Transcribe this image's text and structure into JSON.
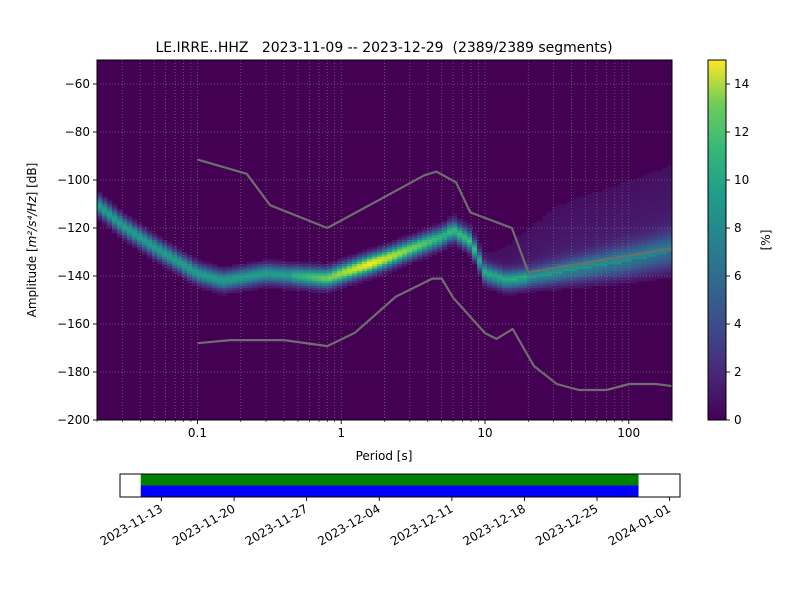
{
  "chart_data": [
    {
      "type": "heatmap",
      "subtype": "probabilistic power spectral density",
      "title": "LE.IRRE..HHZ   2023-11-09 -- 2023-12-29  (2389/2389 segments)",
      "xlabel": "Period [s]",
      "ylabel_prefix": "Amplitude [",
      "ylabel_math": "m²/s⁴/Hz",
      "ylabel_suffix": "] [dB]",
      "x_scale": "log",
      "xlim": [
        0.02,
        200
      ],
      "ylim": [
        -200,
        -50
      ],
      "xticks": [
        {
          "value": 0.1,
          "label": "0.1"
        },
        {
          "value": 1,
          "label": "1"
        },
        {
          "value": 10,
          "label": "10"
        },
        {
          "value": 100,
          "label": "100"
        }
      ],
      "yticks": [
        -60,
        -80,
        -100,
        -120,
        -140,
        -160,
        -180,
        -200
      ],
      "grid": true,
      "colormap": "viridis",
      "colorbar": {
        "label": "[%]",
        "range": [
          0,
          15
        ],
        "ticks": [
          0,
          2,
          4,
          6,
          8,
          10,
          12,
          14
        ]
      },
      "density_mode_curve": {
        "period": [
          0.02,
          0.03,
          0.05,
          0.1,
          0.15,
          0.3,
          0.5,
          0.8,
          1.0,
          2.0,
          4.0,
          5.0,
          6.0,
          8.0,
          10.0,
          14.0,
          20.0,
          50.0,
          100.0,
          200.0
        ],
        "db": [
          -110,
          -119,
          -128,
          -139,
          -142,
          -139,
          -140,
          -141,
          -139,
          -133,
          -126,
          -124,
          -121,
          -126,
          -139,
          -142,
          -141,
          -137,
          -134,
          -130
        ]
      },
      "noise_model_high": {
        "period": [
          0.1,
          0.22,
          0.32,
          0.8,
          3.8,
          4.6,
          6.3,
          7.9,
          15.4,
          20.0,
          354.8
        ],
        "db": [
          -91.5,
          -97.4,
          -110.5,
          -120.0,
          -98.0,
          -96.5,
          -101.0,
          -113.5,
          -120.0,
          -138.5,
          -126.0
        ]
      },
      "noise_model_low": {
        "period": [
          0.1,
          0.17,
          0.4,
          0.8,
          1.24,
          2.4,
          4.3,
          5.0,
          6.0,
          10.0,
          12.0,
          15.6,
          21.9,
          31.6,
          45.0,
          70.0,
          101.0,
          154.0,
          328.0
        ],
        "db": [
          -168.0,
          -166.7,
          -166.7,
          -169.2,
          -163.7,
          -148.6,
          -141.1,
          -141.1,
          -149.0,
          -163.8,
          -166.2,
          -162.1,
          -177.5,
          -185.0,
          -187.5,
          -187.5,
          -185.0,
          -185.0,
          -187.5
        ]
      }
    },
    {
      "type": "timeline",
      "description_source": "data coverage bar",
      "xlim": [
        "2023-11-09",
        "2024-01-02"
      ],
      "xticks": [
        "2023-11-13",
        "2023-11-20",
        "2023-11-27",
        "2023-12-04",
        "2023-12-11",
        "2023-12-18",
        "2023-12-25",
        "2024-01-01"
      ],
      "segments": [
        {
          "start": "2023-11-11",
          "end": "2023-12-29",
          "color": "#008000"
        },
        {
          "start": "2023-11-11",
          "end": "2023-12-29",
          "color": "#0000ff"
        }
      ]
    }
  ]
}
